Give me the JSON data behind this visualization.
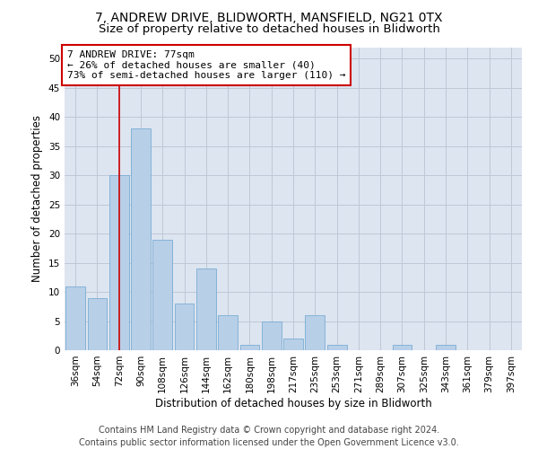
{
  "title_line1": "7, ANDREW DRIVE, BLIDWORTH, MANSFIELD, NG21 0TX",
  "title_line2": "Size of property relative to detached houses in Blidworth",
  "xlabel": "Distribution of detached houses by size in Blidworth",
  "ylabel": "Number of detached properties",
  "all_values": [
    11,
    9,
    30,
    38,
    19,
    8,
    14,
    6,
    1,
    5,
    2,
    6,
    1,
    0,
    0,
    1,
    0,
    1,
    0,
    0,
    0
  ],
  "categories": [
    "36sqm",
    "54sqm",
    "72sqm",
    "90sqm",
    "108sqm",
    "126sqm",
    "144sqm",
    "162sqm",
    "180sqm",
    "198sqm",
    "217sqm",
    "235sqm",
    "253sqm",
    "271sqm",
    "289sqm",
    "307sqm",
    "325sqm",
    "343sqm",
    "361sqm",
    "379sqm",
    "397sqm"
  ],
  "bar_color": "#b8cfe8",
  "bar_edge_color": "#7aadd4",
  "vline_x": 2,
  "vline_color": "#cc0000",
  "annotation_text": "7 ANDREW DRIVE: 77sqm\n← 26% of detached houses are smaller (40)\n73% of semi-detached houses are larger (110) →",
  "annotation_box_color": "#ffffff",
  "annotation_box_edge": "#cc0000",
  "ylim": [
    0,
    52
  ],
  "yticks": [
    0,
    5,
    10,
    15,
    20,
    25,
    30,
    35,
    40,
    45,
    50
  ],
  "bg_color": "#dde5f0",
  "footer_line1": "Contains HM Land Registry data © Crown copyright and database right 2024.",
  "footer_line2": "Contains public sector information licensed under the Open Government Licence v3.0.",
  "title_fontsize": 10,
  "subtitle_fontsize": 9.5,
  "axis_label_fontsize": 8.5,
  "tick_fontsize": 7.5,
  "annotation_fontsize": 8,
  "footer_fontsize": 7
}
